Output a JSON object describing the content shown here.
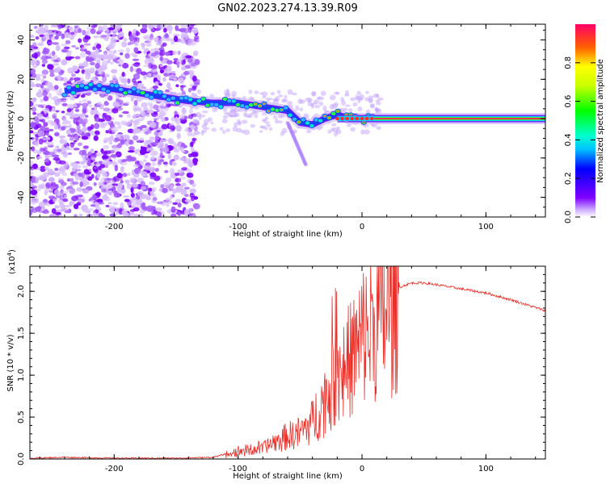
{
  "title": "GN02.2023.274.13.39.R09",
  "colors": {
    "snr_line": "#e8302a",
    "spectrum_bg": "#ffffff"
  },
  "chart_data": [
    {
      "type": "heatmap",
      "xlabel": "Height of straight line (km)",
      "ylabel": "Frequency (Hz)",
      "xlim": [
        -268,
        148
      ],
      "ylim": [
        -50,
        48
      ],
      "x_ticks": [
        "-200",
        "-100",
        "0",
        "100"
      ],
      "y_ticks": [
        "-40",
        "-20",
        "0",
        "20",
        "40"
      ],
      "colorbar": {
        "label": "Normalized spectral amplitude",
        "range": [
          0,
          1
        ],
        "ticks": [
          "0.0",
          "0.2",
          "0.4",
          "0.6",
          "0.8"
        ]
      },
      "ridge": {
        "x": [
          -240,
          -220,
          -200,
          -180,
          -160,
          -140,
          -120,
          -100,
          -80,
          -60,
          -50,
          -40,
          -30,
          -20,
          -10,
          0,
          20,
          60,
          100,
          148
        ],
        "y": [
          14,
          16,
          15,
          13,
          11,
          9,
          8,
          8,
          6,
          4,
          -2,
          -3,
          0,
          2,
          0,
          0,
          0,
          0,
          0,
          0
        ]
      }
    },
    {
      "type": "line",
      "xlabel": "Height of straight line (km)",
      "ylabel": "SNR (10 * v/v)",
      "scale_label": "(x10",
      "scale_exp": "4",
      "xlim": [
        -268,
        148
      ],
      "ylim": [
        0,
        2.3
      ],
      "x_ticks": [
        "-200",
        "-100",
        "0",
        "100"
      ],
      "y_ticks": [
        "0.0",
        "0.5",
        "1.0",
        "1.5",
        "2.0"
      ],
      "series": [
        {
          "x": [
            -268,
            -240,
            -200,
            -150,
            -120,
            -110,
            -100,
            -90,
            -80,
            -70,
            -60,
            -50,
            -40,
            -30,
            -20,
            -10,
            0,
            10,
            20,
            30,
            40,
            50,
            60,
            80,
            100,
            120,
            148
          ],
          "y": [
            0.01,
            0.02,
            0.01,
            0.01,
            0.02,
            0.06,
            0.1,
            0.12,
            0.15,
            0.22,
            0.3,
            0.35,
            0.5,
            0.8,
            1.1,
            1.3,
            1.6,
            1.8,
            1.95,
            2.05,
            2.1,
            2.1,
            2.08,
            2.03,
            1.98,
            1.9,
            1.77
          ]
        }
      ]
    }
  ]
}
